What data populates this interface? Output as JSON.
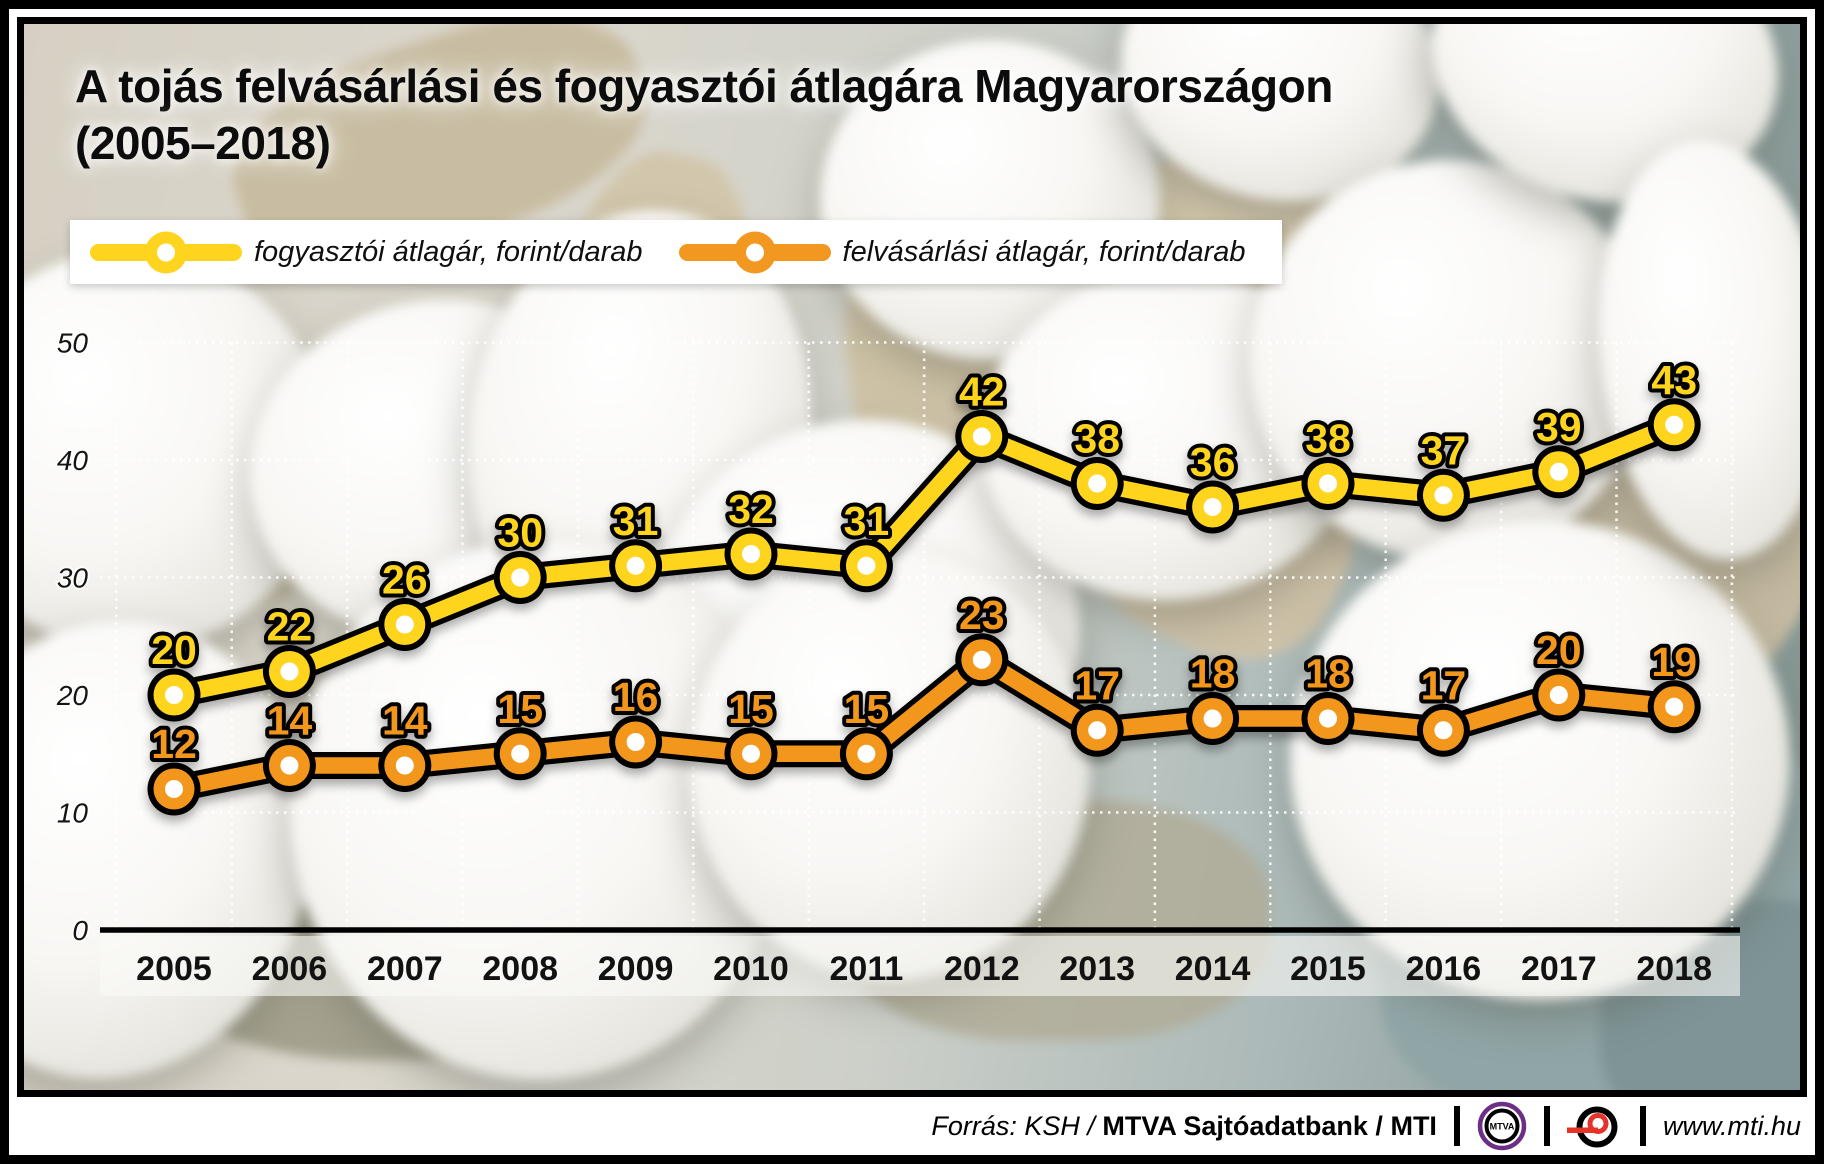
{
  "title": {
    "line1": "A tojás felvásárlási és fogyasztói átlagára Magyarországon",
    "line2": "(2005–2018)"
  },
  "legend": {
    "items": [
      {
        "label": "fogyasztói átlagár, forint/darab"
      },
      {
        "label": "felvásárlási átlagár, forint/darab"
      }
    ]
  },
  "chart_data": {
    "type": "line",
    "title": "A tojás felvásárlási és fogyasztói átlagára Magyarországon (2005–2018)",
    "categories": [
      "2005",
      "2006",
      "2007",
      "2008",
      "2009",
      "2010",
      "2011",
      "2012",
      "2013",
      "2014",
      "2015",
      "2016",
      "2017",
      "2018"
    ],
    "series": [
      {
        "name": "fogyasztói átlagár, forint/darab",
        "color": "#FFD41E",
        "values": [
          20,
          22,
          26,
          30,
          31,
          32,
          31,
          42,
          38,
          36,
          38,
          37,
          39,
          43
        ]
      },
      {
        "name": "felvásárlási átlagár, forint/darab",
        "color": "#F2971F",
        "values": [
          12,
          14,
          14,
          15,
          16,
          15,
          15,
          23,
          17,
          18,
          18,
          17,
          20,
          19
        ]
      }
    ],
    "ylim": [
      0,
      50
    ],
    "yticks": [
      0,
      10,
      20,
      30,
      40,
      50
    ],
    "grid": "dotted white, horizontal at each ytick and vertical midway between years",
    "legend_position": "top",
    "value_labels": "above each point, bold, series color with black outline"
  },
  "footer": {
    "source_prefix": "Forrás: KSH /",
    "source_org": "MTVA Sajtóadatbank",
    "source_slash": "/",
    "source_mti": "MTI",
    "mtva_logo_text": "MTVA",
    "website": "www.mti.hu"
  },
  "colors": {
    "consumer_line": "#FFD41E",
    "purchase_line": "#F2971F",
    "line_casing": "#000000",
    "mtva_purple": "#6d2e85",
    "mti_red": "#e63329"
  }
}
